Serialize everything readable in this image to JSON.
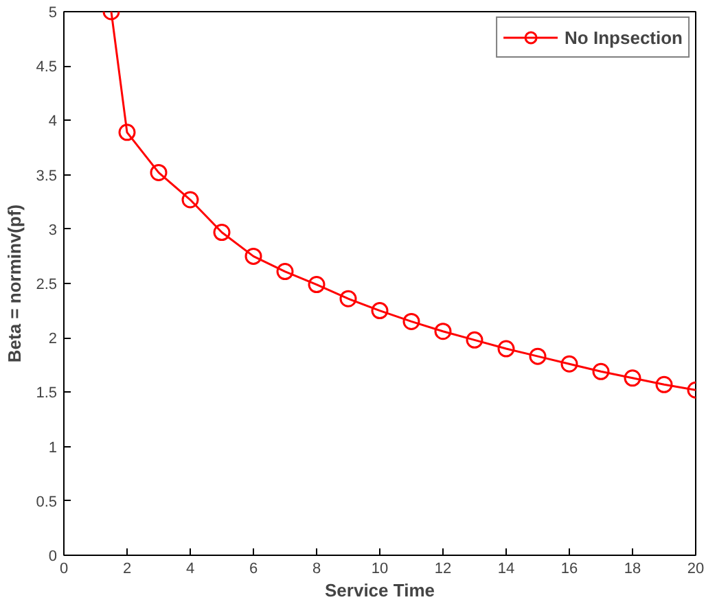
{
  "chart_data": {
    "type": "line",
    "xlabel": "Service Time",
    "ylabel": "Beta = norminv(pf)",
    "x": [
      1.5,
      2,
      3,
      4,
      5,
      6,
      7,
      8,
      9,
      10,
      11,
      12,
      13,
      14,
      15,
      16,
      17,
      18,
      19,
      20
    ],
    "series": [
      {
        "name": "No Inpsection",
        "color": "#ff0000",
        "values": [
          5.0,
          3.89,
          3.52,
          3.27,
          2.97,
          2.75,
          2.61,
          2.49,
          2.36,
          2.25,
          2.15,
          2.06,
          1.98,
          1.9,
          1.83,
          1.76,
          1.69,
          1.63,
          1.57,
          1.52
        ]
      }
    ],
    "xlim": [
      0,
      20
    ],
    "ylim": [
      0,
      5
    ],
    "xticks": [
      0,
      2,
      4,
      6,
      8,
      10,
      12,
      14,
      16,
      18,
      20
    ],
    "yticks": [
      0,
      0.5,
      1,
      1.5,
      2,
      2.5,
      3,
      3.5,
      4,
      4.5,
      5
    ],
    "grid": false,
    "legend": "top right",
    "marker": "circle",
    "line_style": "solid"
  }
}
